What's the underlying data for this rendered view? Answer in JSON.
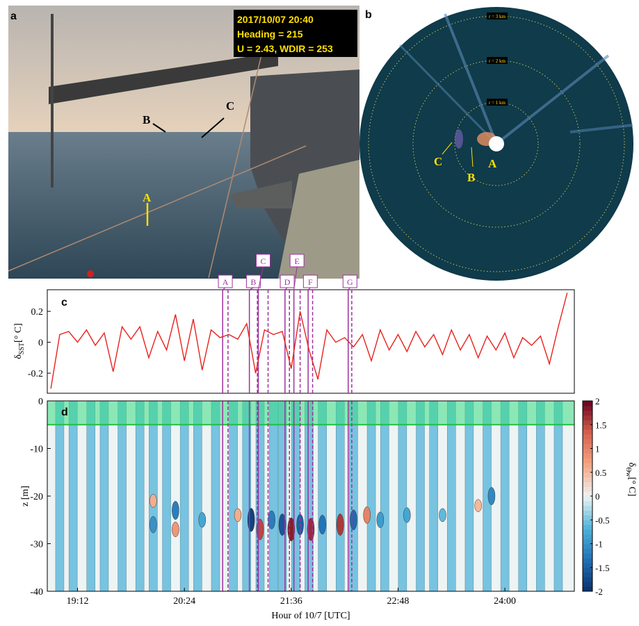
{
  "panel_a": {
    "letter": "a",
    "info": [
      "2017/10/07 20:40",
      "Heading = 215",
      "U = 2.43, WDIR = 253"
    ],
    "labels": [
      "A",
      "B",
      "C"
    ]
  },
  "panel_b": {
    "letter": "b",
    "rings": [
      "r = 1 km",
      "r = 2 km",
      "r = 3 km"
    ],
    "labels": [
      "A",
      "B",
      "C"
    ]
  },
  "chart_data": [
    {
      "type": "line",
      "letter": "c",
      "ylabel": {
        "symbol": "δ",
        "subscript": "SST",
        "unit": "[° C]"
      },
      "x": [
        18.9,
        19.0,
        19.1,
        19.2,
        19.3,
        19.4,
        19.5,
        19.6,
        19.7,
        19.8,
        19.9,
        20.0,
        20.1,
        20.2,
        20.3,
        20.4,
        20.5,
        20.6,
        20.7,
        20.8,
        20.9,
        21.0,
        21.1,
        21.2,
        21.3,
        21.4,
        21.5,
        21.6,
        21.7,
        21.8,
        21.9,
        22.0,
        22.1,
        22.2,
        22.3,
        22.4,
        22.5,
        22.6,
        22.7,
        22.8,
        22.9,
        23.0,
        23.1,
        23.2,
        23.3,
        23.4,
        23.5,
        23.6,
        23.7,
        23.8,
        23.9,
        24.0,
        24.1,
        24.2,
        24.3,
        24.4,
        24.5,
        24.6,
        24.7
      ],
      "series": [
        {
          "color": "#e8211c",
          "values": [
            -0.3,
            0.05,
            0.07,
            0.0,
            0.08,
            -0.02,
            0.06,
            -0.19,
            0.1,
            0.02,
            0.1,
            -0.1,
            0.07,
            -0.05,
            0.18,
            -0.12,
            0.15,
            -0.18,
            0.08,
            0.03,
            0.05,
            0.02,
            0.12,
            -0.2,
            0.08,
            0.05,
            0.07,
            -0.17,
            0.2,
            -0.05,
            -0.24,
            0.08,
            0.0,
            0.03,
            -0.03,
            0.05,
            -0.12,
            0.08,
            -0.05,
            0.05,
            -0.06,
            0.07,
            -0.03,
            0.05,
            -0.08,
            0.08,
            -0.05,
            0.05,
            -0.1,
            0.04,
            -0.05,
            0.06,
            -0.1,
            0.03,
            -0.02,
            0.04,
            -0.14,
            0.1,
            0.32
          ]
        }
      ],
      "xlim": [
        18.86,
        24.78
      ],
      "ylim": [
        -0.33,
        0.34
      ],
      "yticks": [
        -0.2,
        0,
        0.2
      ],
      "event_color": "#a0309f",
      "events": [
        {
          "label": "A",
          "start": 20.83,
          "end": 20.89
        },
        {
          "label": "B",
          "start": 21.13,
          "end": 21.22
        },
        {
          "label": "C",
          "start": 21.23,
          "end": 21.34
        },
        {
          "label": "D",
          "start": 21.53,
          "end": 21.58
        },
        {
          "label": "E",
          "start": 21.63,
          "end": 21.7
        },
        {
          "label": "F",
          "start": 21.79,
          "end": 21.84
        },
        {
          "label": "G",
          "start": 22.24,
          "end": 22.28
        }
      ]
    },
    {
      "type": "contour",
      "letter": "d",
      "ylabel": "z [m]",
      "xlabel": "Hour of 10/7 [UTC]",
      "xlim": [
        18.86,
        24.78
      ],
      "xticks": [
        {
          "value": 19.2,
          "label": "19:12"
        },
        {
          "value": 20.4,
          "label": "20:24"
        },
        {
          "value": 21.6,
          "label": "21:36"
        },
        {
          "value": 22.8,
          "label": "22:48"
        },
        {
          "value": 24.0,
          "label": "24:00"
        }
      ],
      "ylim": [
        -40,
        0
      ],
      "yticks": [
        0,
        -10,
        -20,
        -30,
        -40
      ],
      "mixed_layer_depth": -5,
      "mixed_layer_color": "#3ddc84",
      "stripe_value": -0.5,
      "stripes": [
        19.0,
        19.15,
        19.35,
        19.5,
        19.7,
        19.9,
        20.05,
        20.2,
        20.4,
        20.55,
        20.75,
        20.95,
        21.1,
        21.25,
        21.4,
        21.5,
        21.65,
        21.8,
        21.95,
        22.15,
        22.3,
        22.5,
        22.65,
        22.85,
        23.05,
        23.2,
        23.4,
        23.6,
        23.8,
        24.0,
        24.2,
        24.4,
        24.6
      ],
      "blobs": [
        {
          "x": 20.05,
          "z": -26,
          "value": -1
        },
        {
          "x": 20.05,
          "z": -21,
          "value": 0.6
        },
        {
          "x": 20.3,
          "z": -23,
          "value": -1.2
        },
        {
          "x": 20.3,
          "z": -27,
          "value": 0.8
        },
        {
          "x": 20.6,
          "z": -25,
          "value": -0.8
        },
        {
          "x": 21.0,
          "z": -24,
          "value": 0.6
        },
        {
          "x": 21.15,
          "z": -25,
          "value": -1.8
        },
        {
          "x": 21.25,
          "z": -27,
          "value": 1.5
        },
        {
          "x": 21.38,
          "z": -25,
          "value": -1.2
        },
        {
          "x": 21.5,
          "z": -26,
          "value": -1.6
        },
        {
          "x": 21.6,
          "z": -27,
          "value": 1.8
        },
        {
          "x": 21.7,
          "z": -26,
          "value": -1.5
        },
        {
          "x": 21.82,
          "z": -27,
          "value": 1.7
        },
        {
          "x": 21.95,
          "z": -26,
          "value": -1.3
        },
        {
          "x": 22.15,
          "z": -26,
          "value": 1.6
        },
        {
          "x": 22.3,
          "z": -25,
          "value": -1.4
        },
        {
          "x": 22.45,
          "z": -24,
          "value": 1.0
        },
        {
          "x": 22.6,
          "z": -25,
          "value": -0.9
        },
        {
          "x": 22.9,
          "z": -24,
          "value": -0.8
        },
        {
          "x": 23.3,
          "z": -24,
          "value": -0.6
        },
        {
          "x": 23.7,
          "z": -22,
          "value": 0.5
        },
        {
          "x": 23.85,
          "z": -20,
          "value": -1.1
        }
      ],
      "clim": [
        -2,
        2
      ],
      "colormap": [
        "#08306b",
        "#2171b5",
        "#4fb3d9",
        "#eef3f3",
        "#f4a582",
        "#d6604d",
        "#67001f"
      ],
      "colorbar_ticks": [
        2,
        1.5,
        1,
        0.5,
        0,
        -0.5,
        -1,
        -1.5,
        -2
      ],
      "colorbar_label": {
        "symbol": "δ",
        "subscript": "Θw",
        "unit": "[° C]"
      }
    }
  ]
}
